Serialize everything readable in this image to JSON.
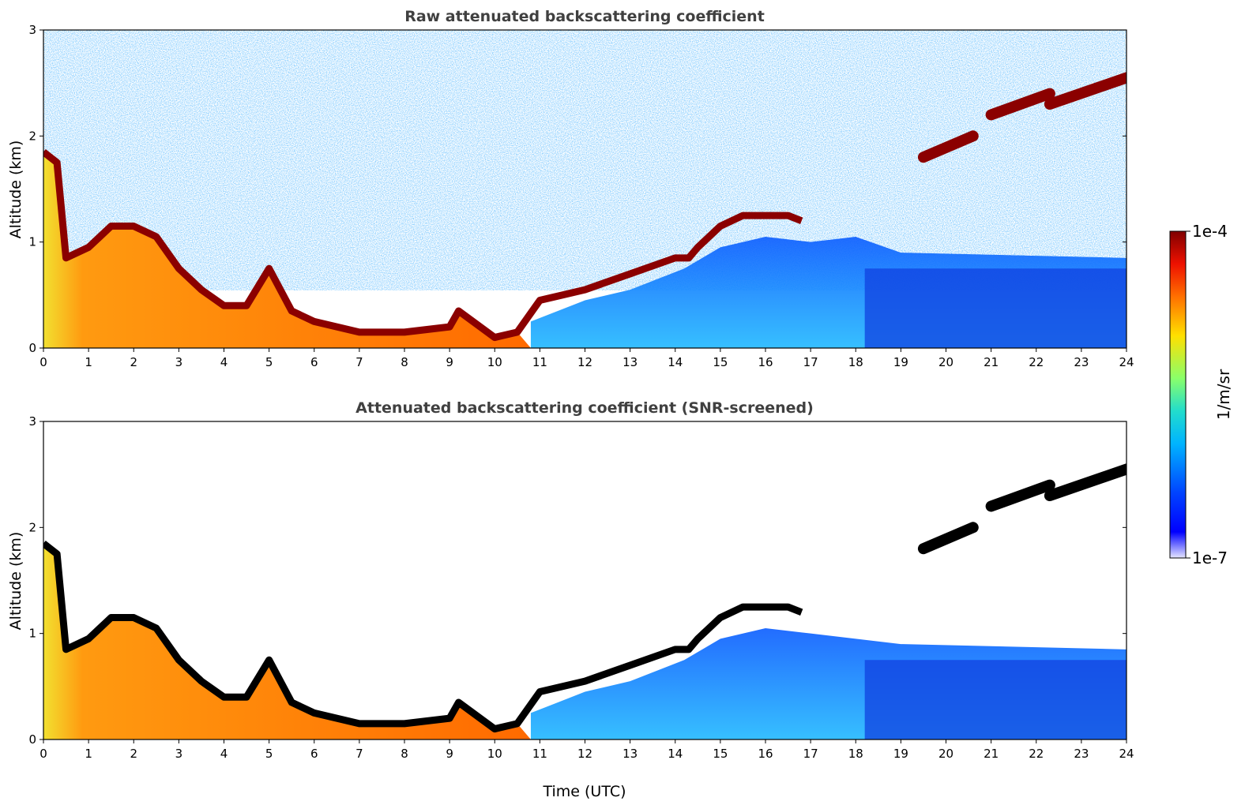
{
  "chart_data": [
    {
      "type": "heatmap",
      "title": "Raw attenuated backscattering coefficient",
      "xlabel": "",
      "ylabel": "Altitude (km)",
      "xlim": [
        0,
        24
      ],
      "ylim": [
        0,
        3
      ],
      "xticks": [
        "0",
        "1",
        "2",
        "3",
        "4",
        "5",
        "6",
        "7",
        "8",
        "9",
        "10",
        "11",
        "12",
        "13",
        "14",
        "15",
        "16",
        "17",
        "18",
        "19",
        "20",
        "21",
        "22",
        "23",
        "24"
      ],
      "yticks": [
        "0",
        "1",
        "2",
        "3"
      ],
      "cloud_layer_height_km": {
        "time": [
          0,
          0.3,
          0.5,
          1,
          1.5,
          2,
          2.5,
          3,
          3.5,
          4,
          4.5,
          5,
          5.5,
          6,
          7,
          8,
          9,
          9.2,
          10,
          10.5,
          11,
          12,
          13,
          14,
          14.3,
          14.5,
          15,
          15.5,
          16,
          16.5,
          16.8
        ],
        "altitude": [
          1.85,
          1.75,
          0.85,
          0.95,
          1.15,
          1.15,
          1.05,
          0.75,
          0.55,
          0.4,
          0.4,
          0.75,
          0.35,
          0.25,
          0.15,
          0.15,
          0.2,
          0.35,
          0.1,
          0.15,
          0.45,
          0.55,
          0.7,
          0.85,
          0.85,
          0.95,
          1.15,
          1.25,
          1.25,
          1.25,
          1.2
        ]
      },
      "elevated_layers": [
        {
          "time": [
            19.5,
            20.6
          ],
          "altitude": [
            1.8,
            2.0
          ]
        },
        {
          "time": [
            21.0,
            22.3
          ],
          "altitude": [
            2.2,
            2.4
          ]
        },
        {
          "time": [
            22.3,
            24.0
          ],
          "altitude": [
            2.3,
            2.55
          ]
        }
      ]
    },
    {
      "type": "heatmap",
      "title": "Attenuated backscattering coefficient (SNR-screened)",
      "xlabel": "Time (UTC)",
      "ylabel": "Altitude (km)",
      "xlim": [
        0,
        24
      ],
      "ylim": [
        0,
        3
      ],
      "xticks": [
        "0",
        "1",
        "2",
        "3",
        "4",
        "5",
        "6",
        "7",
        "8",
        "9",
        "10",
        "11",
        "12",
        "13",
        "14",
        "15",
        "16",
        "17",
        "18",
        "19",
        "20",
        "21",
        "22",
        "23",
        "24"
      ],
      "yticks": [
        "0",
        "1",
        "2",
        "3"
      ]
    }
  ],
  "colorbar": {
    "label": "1/m/sr",
    "max_label": "1e-4",
    "min_label": "1e-7",
    "scale": "log",
    "colormap": "jet"
  }
}
